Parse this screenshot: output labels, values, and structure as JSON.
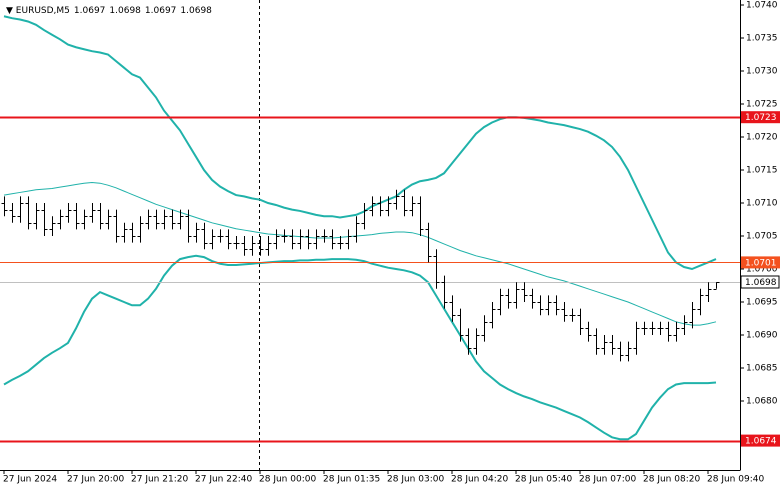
{
  "chart_data": {
    "type": "ohlc",
    "title": "EURUSD,M5",
    "bar_color": "#000000",
    "categories": [
      "27 Jun 2024",
      null,
      null,
      null,
      null,
      null,
      null,
      null,
      "27 Jun 20:00",
      null,
      null,
      null,
      null,
      null,
      null,
      null,
      "27 Jun 21:20",
      null,
      null,
      null,
      null,
      null,
      null,
      null,
      "27 Jun 22:40",
      null,
      null,
      null,
      null,
      null,
      null,
      null,
      "28 Jun 00:00",
      null,
      null,
      null,
      null,
      null,
      null,
      null,
      "28 Jun 01:35",
      null,
      null,
      null,
      null,
      null,
      null,
      null,
      "28 Jun 03:00",
      null,
      null,
      null,
      null,
      null,
      null,
      null,
      "28 Jun 04:20",
      null,
      null,
      null,
      null,
      null,
      null,
      null,
      "28 Jun 05:40",
      null,
      null,
      null,
      null,
      null,
      null,
      null,
      "28 Jun 07:00",
      null,
      null,
      null,
      null,
      null,
      null,
      null,
      "28 Jun 08:20",
      null,
      null,
      null,
      null,
      null,
      null,
      null,
      "28 Jun 09:40",
      null
    ],
    "open": [
      1.071,
      1.0709,
      1.0708,
      1.071,
      1.0707,
      1.0709,
      1.0706,
      1.0707,
      1.0708,
      1.0709,
      1.0707,
      1.0708,
      1.0709,
      1.0707,
      1.0708,
      1.0705,
      1.0706,
      1.0705,
      1.0707,
      1.0708,
      1.0707,
      1.0708,
      1.0707,
      1.0708,
      1.0705,
      1.0706,
      1.0704,
      1.0705,
      1.0705,
      1.0704,
      1.0704,
      1.0703,
      1.0704,
      1.0703,
      1.0704,
      1.0705,
      1.0705,
      1.0704,
      1.0705,
      1.0704,
      1.0705,
      1.0705,
      1.0704,
      1.0704,
      1.0705,
      1.0707,
      1.0709,
      1.071,
      1.0709,
      1.071,
      1.0711,
      1.0709,
      1.071,
      1.0706,
      1.0702,
      1.0698,
      1.0695,
      1.0693,
      1.069,
      1.0688,
      1.069,
      1.0692,
      1.0694,
      1.0696,
      1.0695,
      1.0697,
      1.0696,
      1.0695,
      1.0694,
      1.0695,
      1.0694,
      1.0693,
      1.0693,
      1.0691,
      1.069,
      1.0688,
      1.0689,
      1.0688,
      1.0687,
      1.0688,
      1.0691,
      1.0691,
      1.0691,
      1.0691,
      1.069,
      1.0691,
      1.0692,
      1.0694,
      1.0696,
      1.0697
    ],
    "high": [
      1.0711,
      1.071,
      1.0711,
      1.0711,
      1.071,
      1.071,
      1.0708,
      1.0709,
      1.071,
      1.071,
      1.0709,
      1.071,
      1.071,
      1.0709,
      1.0709,
      1.0707,
      1.0707,
      1.0708,
      1.0709,
      1.0709,
      1.0709,
      1.0709,
      1.0709,
      1.0709,
      1.0707,
      1.0707,
      1.0706,
      1.0706,
      1.0706,
      1.0705,
      1.0705,
      1.0705,
      1.0705,
      1.0705,
      1.0706,
      1.0706,
      1.0706,
      1.0706,
      1.0706,
      1.0706,
      1.0706,
      1.0706,
      1.0705,
      1.0706,
      1.0708,
      1.071,
      1.0711,
      1.0711,
      1.0711,
      1.0712,
      1.0712,
      1.0711,
      1.0711,
      1.0707,
      1.0703,
      1.0699,
      1.0696,
      1.0694,
      1.0691,
      1.0691,
      1.0693,
      1.0695,
      1.0697,
      1.0697,
      1.0698,
      1.0698,
      1.0697,
      1.0696,
      1.0696,
      1.0696,
      1.0695,
      1.0694,
      1.0694,
      1.0692,
      1.0691,
      1.069,
      1.069,
      1.0689,
      1.0689,
      1.0692,
      1.0692,
      1.0692,
      1.0692,
      1.0692,
      1.0692,
      1.0693,
      1.0695,
      1.0697,
      1.0698,
      1.0698
    ],
    "low": [
      1.0708,
      1.0707,
      1.0707,
      1.0706,
      1.0706,
      1.0705,
      1.0705,
      1.0706,
      1.0707,
      1.0706,
      1.0706,
      1.0707,
      1.0706,
      1.0706,
      1.0704,
      1.0704,
      1.0704,
      1.0704,
      1.0706,
      1.0706,
      1.0706,
      1.0706,
      1.0706,
      1.0704,
      1.0704,
      1.0703,
      1.0703,
      1.0704,
      1.0703,
      1.0703,
      1.0702,
      1.0702,
      1.0702,
      1.0702,
      1.0703,
      1.0704,
      1.0703,
      1.0703,
      1.0703,
      1.0703,
      1.0704,
      1.0703,
      1.0703,
      1.0703,
      1.0704,
      1.0706,
      1.0708,
      1.0708,
      1.0708,
      1.0709,
      1.0708,
      1.0708,
      1.0705,
      1.0701,
      1.0697,
      1.0694,
      1.0692,
      1.0689,
      1.0687,
      1.0687,
      1.0689,
      1.0691,
      1.0693,
      1.0694,
      1.0694,
      1.0695,
      1.0694,
      1.0693,
      1.0693,
      1.0693,
      1.0692,
      1.0692,
      1.069,
      1.0689,
      1.0687,
      1.0687,
      1.0687,
      1.0686,
      1.0686,
      1.0687,
      1.069,
      1.069,
      1.069,
      1.0689,
      1.0689,
      1.069,
      1.0691,
      1.0693,
      1.0695,
      1.0697
    ],
    "close": [
      1.0709,
      1.0708,
      1.071,
      1.0707,
      1.0709,
      1.0706,
      1.0707,
      1.0708,
      1.0709,
      1.0707,
      1.0708,
      1.0709,
      1.0707,
      1.0708,
      1.0705,
      1.0706,
      1.0705,
      1.0707,
      1.0708,
      1.0707,
      1.0708,
      1.0707,
      1.0708,
      1.0705,
      1.0706,
      1.0704,
      1.0705,
      1.0705,
      1.0704,
      1.0704,
      1.0703,
      1.0704,
      1.0703,
      1.0704,
      1.0705,
      1.0705,
      1.0704,
      1.0705,
      1.0704,
      1.0705,
      1.0705,
      1.0704,
      1.0704,
      1.0705,
      1.0707,
      1.0709,
      1.071,
      1.0709,
      1.071,
      1.0711,
      1.0709,
      1.071,
      1.0706,
      1.0702,
      1.0698,
      1.0695,
      1.0693,
      1.069,
      1.0688,
      1.069,
      1.0692,
      1.0694,
      1.0696,
      1.0695,
      1.0697,
      1.0696,
      1.0695,
      1.0694,
      1.0695,
      1.0694,
      1.0693,
      1.0693,
      1.0691,
      1.069,
      1.0688,
      1.0689,
      1.0688,
      1.0687,
      1.0688,
      1.0691,
      1.0691,
      1.0691,
      1.0691,
      1.069,
      1.0691,
      1.0692,
      1.0694,
      1.0696,
      1.0697,
      1.0698
    ],
    "bands": {
      "color": "#20b2aa",
      "upper": [
        1.07383,
        1.0738,
        1.07378,
        1.07375,
        1.0737,
        1.07362,
        1.07355,
        1.07348,
        1.0734,
        1.07336,
        1.07333,
        1.0733,
        1.07328,
        1.07325,
        1.07315,
        1.07305,
        1.07295,
        1.0729,
        1.07275,
        1.0726,
        1.0724,
        1.07225,
        1.0721,
        1.0719,
        1.0717,
        1.0715,
        1.07135,
        1.07125,
        1.07118,
        1.07112,
        1.0711,
        1.07107,
        1.07105,
        1.071,
        1.07097,
        1.07093,
        1.0709,
        1.07088,
        1.07085,
        1.07082,
        1.0708,
        1.0708,
        1.07078,
        1.0708,
        1.07082,
        1.07087,
        1.07095,
        1.071,
        1.07105,
        1.0711,
        1.0712,
        1.07128,
        1.07133,
        1.07135,
        1.07138,
        1.07145,
        1.0716,
        1.07175,
        1.0719,
        1.07205,
        1.07215,
        1.07222,
        1.07227,
        1.0723,
        1.0723,
        1.07229,
        1.07227,
        1.07225,
        1.07222,
        1.0722,
        1.07218,
        1.07215,
        1.07212,
        1.07208,
        1.07202,
        1.07195,
        1.07185,
        1.0717,
        1.0715,
        1.07125,
        1.071,
        1.07075,
        1.0705,
        1.07025,
        1.0701,
        1.07003,
        1.07,
        1.07005,
        1.0701,
        1.07015
      ],
      "middle": [
        1.07112,
        1.07114,
        1.07116,
        1.07118,
        1.0712,
        1.07121,
        1.07122,
        1.07124,
        1.07126,
        1.07128,
        1.0713,
        1.07131,
        1.0713,
        1.07127,
        1.07123,
        1.07118,
        1.07113,
        1.07108,
        1.07103,
        1.07098,
        1.07094,
        1.0709,
        1.07086,
        1.07082,
        1.07078,
        1.07074,
        1.0707,
        1.07067,
        1.07064,
        1.07061,
        1.07059,
        1.07057,
        1.07055,
        1.07053,
        1.07052,
        1.07051,
        1.0705,
        1.07049,
        1.07048,
        1.07047,
        1.07047,
        1.07047,
        1.07048,
        1.07049,
        1.0705,
        1.07051,
        1.07052,
        1.07054,
        1.07055,
        1.07056,
        1.07056,
        1.07055,
        1.07052,
        1.07048,
        1.07043,
        1.07038,
        1.07033,
        1.07028,
        1.07024,
        1.0702,
        1.07017,
        1.07014,
        1.07011,
        1.07008,
        1.07004,
        1.07,
        1.06996,
        1.06992,
        1.06988,
        1.06985,
        1.06982,
        1.06978,
        1.06974,
        1.0697,
        1.06966,
        1.06962,
        1.06958,
        1.06954,
        1.0695,
        1.06945,
        1.0694,
        1.06935,
        1.0693,
        1.06925,
        1.0692,
        1.06917,
        1.06915,
        1.06915,
        1.06917,
        1.0692
      ],
      "lower": [
        1.06825,
        1.06832,
        1.06838,
        1.06845,
        1.06855,
        1.06865,
        1.06873,
        1.0688,
        1.06888,
        1.0691,
        1.06935,
        1.06955,
        1.06965,
        1.0696,
        1.06955,
        1.0695,
        1.06945,
        1.06945,
        1.06955,
        1.0697,
        1.0699,
        1.07005,
        1.07015,
        1.07018,
        1.0702,
        1.07018,
        1.07012,
        1.07008,
        1.07006,
        1.07006,
        1.07007,
        1.07008,
        1.07009,
        1.0701,
        1.07011,
        1.07012,
        1.07012,
        1.07013,
        1.07013,
        1.07014,
        1.07014,
        1.07015,
        1.07015,
        1.07015,
        1.07014,
        1.07012,
        1.07008,
        1.07005,
        1.07002,
        1.07,
        1.06998,
        1.06995,
        1.0699,
        1.0698,
        1.0696,
        1.0694,
        1.0692,
        1.069,
        1.0688,
        1.0686,
        1.06845,
        1.06835,
        1.06825,
        1.06818,
        1.06812,
        1.06807,
        1.06803,
        1.06798,
        1.06794,
        1.0679,
        1.06785,
        1.0678,
        1.06775,
        1.06768,
        1.0676,
        1.06752,
        1.06745,
        1.06742,
        1.06742,
        1.0675,
        1.0677,
        1.0679,
        1.06805,
        1.06818,
        1.06825,
        1.06827,
        1.06827,
        1.06827,
        1.06827,
        1.06828
      ]
    },
    "levels": [
      {
        "value": 1.0723,
        "color": "#e8141b"
      },
      {
        "value": 1.0701,
        "color": "#f4511e"
      },
      {
        "value": 1.0674,
        "color": "#e8141b"
      }
    ],
    "ylim": [
      1.067,
      1.074
    ],
    "yticks": [
      {
        "value": 1.074,
        "label": "1.0740"
      },
      1.0735,
      {
        "value": 1.073,
        "label": "1.0730"
      },
      1.0725,
      {
        "value": 1.072,
        "label": "1.0720"
      },
      1.0715,
      {
        "value": 1.071,
        "label": "1.0710"
      },
      1.0705,
      {
        "value": 1.07,
        "label": "1.0700"
      },
      1.0695,
      {
        "value": 1.069,
        "label": "1.0690"
      },
      1.0685,
      {
        "value": 1.068,
        "label": "1.0680"
      }
    ]
  }
}
